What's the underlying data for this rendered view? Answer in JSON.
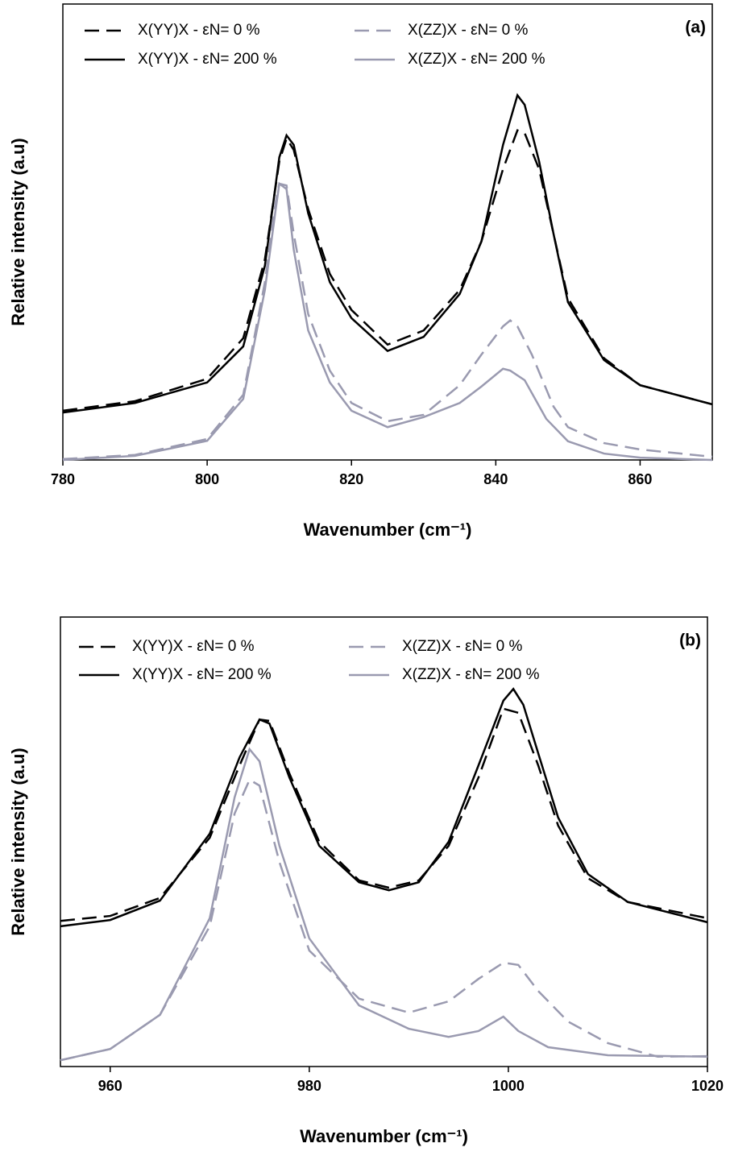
{
  "chart_data": [
    {
      "type": "line",
      "annotation": "(a)",
      "xlabel": "Wavenumber (cm⁻¹)",
      "ylabel": "Relative intensity (a.u)",
      "xlim": [
        780,
        870
      ],
      "xticks": [
        780,
        800,
        820,
        840,
        860
      ],
      "ylim": [
        0,
        100
      ],
      "series": [
        {
          "name": "X(YY)X - εN= 0 %",
          "color": "#000000",
          "style": "dashed",
          "x": [
            780,
            790,
            800,
            805,
            808,
            810,
            811,
            812,
            814,
            817,
            820,
            825,
            830,
            835,
            838,
            841,
            843,
            844,
            846,
            848,
            850,
            855,
            860,
            870
          ],
          "values": [
            10.8,
            12.9,
            17.8,
            26.7,
            44,
            65.5,
            70.5,
            68,
            55,
            40.8,
            32.9,
            25.3,
            28.4,
            37.3,
            47.9,
            63.8,
            72.3,
            71.7,
            63.8,
            49.6,
            35.5,
            22.3,
            16.4,
            12.2
          ]
        },
        {
          "name": "X(YY)X - εN= 200 %",
          "color": "#000000",
          "style": "solid",
          "x": [
            780,
            790,
            800,
            805,
            808,
            810,
            811,
            812,
            814,
            817,
            820,
            825,
            830,
            835,
            838,
            841,
            843,
            844,
            846,
            848,
            850,
            855,
            860,
            870
          ],
          "values": [
            10.4,
            12.5,
            17,
            24.9,
            42.6,
            66.4,
            71.2,
            69.1,
            54.1,
            39,
            31.1,
            23.9,
            27,
            36.4,
            47.9,
            69.1,
            80,
            77.9,
            65.5,
            49.6,
            34.6,
            21.9,
            16.4,
            12.2
          ]
        },
        {
          "name": "X(ZZ)X - εN= 0 %",
          "color": "#9a9ab0",
          "style": "dashed",
          "x": [
            780,
            790,
            800,
            805,
            808,
            809.5,
            810,
            811,
            812,
            814,
            817,
            820,
            825,
            830,
            835,
            838,
            841,
            842,
            843,
            845,
            848,
            850,
            855,
            860,
            870
          ],
          "values": [
            0.2,
            1.1,
            4.6,
            14.3,
            39,
            56.7,
            60.6,
            60.2,
            49.6,
            32,
            19.6,
            12.5,
            8.5,
            9.9,
            16.4,
            23.1,
            29.3,
            30.6,
            29.3,
            23.1,
            11.7,
            7.2,
            3.7,
            2.3,
            0.7
          ]
        },
        {
          "name": "X(ZZ)X - εN= 200 %",
          "color": "#9a9ab0",
          "style": "solid",
          "x": [
            780,
            790,
            800,
            805,
            808,
            809.5,
            810,
            811,
            812,
            814,
            817,
            820,
            825,
            830,
            835,
            838,
            841,
            842,
            844,
            847,
            850,
            855,
            860,
            870
          ],
          "values": [
            0,
            0.9,
            4.2,
            13.4,
            37.3,
            55,
            60.6,
            59.4,
            46.1,
            28.4,
            17,
            10.8,
            7.2,
            9.4,
            12.5,
            16.1,
            20,
            19.6,
            17.5,
            9,
            4.1,
            1.4,
            0.5,
            0
          ]
        }
      ]
    },
    {
      "type": "line",
      "annotation": "(b)",
      "xlabel": "Wavenumber (cm⁻¹)",
      "ylabel": "Relative intensity (a.u)",
      "xlim": [
        955,
        1020
      ],
      "xticks": [
        960,
        980,
        1000,
        1020
      ],
      "ylim": [
        0,
        100
      ],
      "series": [
        {
          "name": "X(YY)X - εN= 0 %",
          "color": "#000000",
          "style": "dashed",
          "x": [
            955,
            960,
            965,
            970,
            973,
            975,
            976,
            978,
            981,
            985,
            988,
            991,
            994,
            997,
            999.5,
            1001,
            1003,
            1005,
            1008,
            1012,
            1020
          ],
          "values": [
            32.4,
            33.5,
            37.5,
            50.9,
            67,
            77.2,
            76.9,
            65.2,
            50,
            41.4,
            39.8,
            41.4,
            49.1,
            64.3,
            79.6,
            78.7,
            67,
            53.6,
            41.9,
            36.6,
            33
          ]
        },
        {
          "name": "X(YY)X - εN= 200 %",
          "color": "#000000",
          "style": "solid",
          "x": [
            955,
            960,
            965,
            970,
            973,
            975,
            976,
            978,
            981,
            985,
            988,
            991,
            994,
            997,
            999.5,
            1000.5,
            1001.5,
            1003,
            1005,
            1008,
            1012,
            1020
          ],
          "values": [
            31.2,
            32.6,
            36.9,
            51.8,
            68.8,
            77.2,
            76.3,
            64.3,
            49.1,
            41,
            39.2,
            41,
            50,
            67,
            81.4,
            84,
            80.5,
            69.7,
            55.4,
            42.8,
            36.6,
            32.1
          ]
        },
        {
          "name": "X(ZZ)X - εN= 0 %",
          "color": "#9a9ab0",
          "style": "dashed",
          "x": [
            955,
            960,
            965,
            970,
            972.5,
            974,
            975,
            977,
            980,
            985,
            990,
            994,
            997,
            999.5,
            1001,
            1003,
            1006,
            1010,
            1015,
            1020
          ],
          "values": [
            1.4,
            3.9,
            11.5,
            31.2,
            56.3,
            63.8,
            62.5,
            45.5,
            25.8,
            15.1,
            12,
            14.5,
            19.5,
            23.1,
            22.6,
            16.8,
            10,
            5.2,
            2.2,
            2.3
          ]
        },
        {
          "name": "X(ZZ)X - εN= 200 %",
          "color": "#9a9ab0",
          "style": "solid",
          "x": [
            955,
            960,
            965,
            970,
            972.5,
            974,
            975,
            977,
            980,
            985,
            990,
            994,
            997,
            999.5,
            1001,
            1004,
            1010,
            1020
          ],
          "values": [
            1.4,
            3.9,
            11.5,
            33,
            59.9,
            70.6,
            67.9,
            49.1,
            28.5,
            13.6,
            8.4,
            6.6,
            7.9,
            11.1,
            7.9,
            4.3,
            2.5,
            2.2
          ]
        }
      ]
    }
  ]
}
